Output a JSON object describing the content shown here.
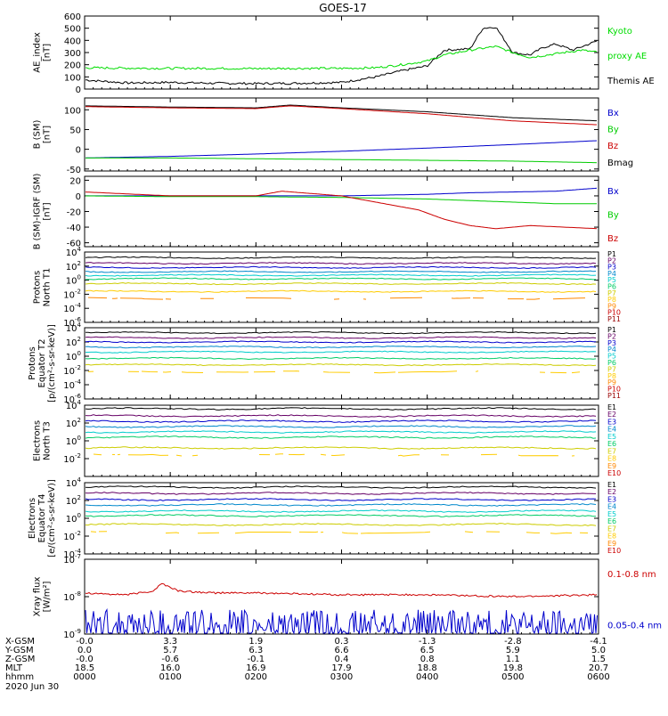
{
  "title": "GOES-17",
  "chart_data": [
    {
      "id": "ae",
      "type": "line",
      "ylabel": "AE_index\n[nT]",
      "ylim": [
        0,
        600
      ],
      "ylog": false,
      "yticks": [
        0,
        100,
        200,
        300,
        400,
        500,
        600
      ],
      "legend": [
        {
          "text": "Kyoto",
          "color": "#00dd00"
        },
        {
          "text": "proxy AE",
          "color": "#00dd00"
        },
        {
          "text": "Themis AE",
          "color": "#000000"
        }
      ],
      "series": [
        {
          "color": "#000000",
          "x": [
            0,
            0.5,
            1,
            1.5,
            2,
            2.5,
            3,
            3.4,
            3.7,
            4.0,
            4.2,
            4.5,
            4.65,
            4.8,
            5.0,
            5.2,
            5.35,
            5.5,
            5.7,
            5.85,
            6.0
          ],
          "y": [
            75,
            50,
            55,
            48,
            45,
            48,
            55,
            100,
            150,
            190,
            320,
            330,
            500,
            510,
            300,
            280,
            340,
            370,
            320,
            360,
            400
          ]
        },
        {
          "color": "#00dd00",
          "x": [
            0,
            0.5,
            1,
            1.5,
            2,
            2.5,
            3,
            3.4,
            3.7,
            4.0,
            4.2,
            4.5,
            4.8,
            5.0,
            5.2,
            5.5,
            5.8,
            6.0
          ],
          "y": [
            175,
            172,
            170,
            170,
            168,
            170,
            170,
            175,
            200,
            230,
            280,
            320,
            350,
            300,
            260,
            290,
            320,
            300
          ]
        }
      ]
    },
    {
      "id": "bsm",
      "type": "line",
      "ylabel": "B (SM)\n[nT]",
      "ylim": [
        -55,
        130
      ],
      "ylog": false,
      "yticks": [
        -50,
        0,
        50,
        100
      ],
      "legend": [
        {
          "text": "Bx",
          "color": "#0000cc"
        },
        {
          "text": "By",
          "color": "#00cc00"
        },
        {
          "text": "Bz",
          "color": "#cc0000"
        },
        {
          "text": "Bmag",
          "color": "#000000"
        }
      ],
      "series": [
        {
          "color": "#000000",
          "x": [
            0,
            1,
            2,
            2.4,
            3,
            4,
            5,
            6
          ],
          "y": [
            110,
            107,
            105,
            112,
            105,
            95,
            80,
            72
          ]
        },
        {
          "color": "#cc0000",
          "x": [
            0,
            1,
            2,
            2.4,
            3,
            4,
            5,
            6
          ],
          "y": [
            108,
            105,
            103,
            110,
            103,
            90,
            72,
            62
          ]
        },
        {
          "color": "#0000cc",
          "x": [
            0,
            1,
            2,
            3,
            4,
            5,
            6
          ],
          "y": [
            -22,
            -18,
            -12,
            -5,
            3,
            12,
            22
          ]
        },
        {
          "color": "#00cc00",
          "x": [
            0,
            1,
            2,
            3,
            4,
            5,
            6
          ],
          "y": [
            -22,
            -22,
            -24,
            -26,
            -28,
            -30,
            -34
          ]
        }
      ]
    },
    {
      "id": "bsm_igrf",
      "type": "line",
      "ylabel": "B (SM)-IGRF (SM)\n[nT]",
      "ylim": [
        -65,
        25
      ],
      "ylog": false,
      "yticks": [
        -60,
        -40,
        -20,
        0,
        20
      ],
      "legend": [
        {
          "text": "Bx",
          "color": "#0000cc"
        },
        {
          "text": "By",
          "color": "#00cc00"
        },
        {
          "text": "Bz",
          "color": "#cc0000"
        }
      ],
      "series": [
        {
          "color": "#0000cc",
          "x": [
            0,
            1,
            2,
            3,
            4,
            4.5,
            5,
            5.5,
            6
          ],
          "y": [
            0,
            0,
            0,
            0,
            2,
            4,
            5,
            6,
            10
          ]
        },
        {
          "color": "#00cc00",
          "x": [
            0,
            1,
            2,
            3,
            4,
            4.5,
            5,
            5.5,
            6
          ],
          "y": [
            0,
            -1,
            -1,
            -2,
            -4,
            -6,
            -8,
            -10,
            -10
          ]
        },
        {
          "color": "#cc0000",
          "x": [
            0,
            1,
            2,
            2.3,
            3,
            3.5,
            3.9,
            4.2,
            4.5,
            4.8,
            5.2,
            5.6,
            6
          ],
          "y": [
            5,
            0,
            0,
            6,
            0,
            -10,
            -18,
            -30,
            -38,
            -42,
            -38,
            -40,
            -42
          ]
        }
      ]
    },
    {
      "id": "protons_n",
      "type": "line",
      "ylabel": "Protons\nNorth T1",
      "ylim": [
        -6,
        4
      ],
      "ylog": true,
      "yticks": [
        -6,
        -4,
        -2,
        0,
        2,
        4
      ],
      "legend": [
        {
          "text": "P1",
          "color": "#000000"
        },
        {
          "text": "P2",
          "color": "#660066"
        },
        {
          "text": "P3",
          "color": "#0000cc"
        },
        {
          "text": "P4",
          "color": "#0088cc"
        },
        {
          "text": "P5",
          "color": "#00cccc"
        },
        {
          "text": "P6",
          "color": "#00cc66"
        },
        {
          "text": "P7",
          "color": "#cccc00"
        },
        {
          "text": "P8",
          "color": "#ffcc00"
        },
        {
          "text": "P9",
          "color": "#ff8800"
        },
        {
          "text": "P10",
          "color": "#cc0000"
        },
        {
          "text": "P11",
          "color": "#990000"
        }
      ],
      "levels": [
        3.2,
        2.4,
        1.8,
        1.2,
        0.7,
        0.2,
        -0.5,
        -1.6,
        -2.6
      ]
    },
    {
      "id": "protons_e",
      "type": "line",
      "ylabel": "Protons\nEquator T2\n[p/(cm²-s-sr-keV)]",
      "ylim": [
        -6,
        4
      ],
      "ylog": true,
      "yticks": [
        -6,
        -4,
        -2,
        0,
        2,
        4
      ],
      "legend": [
        {
          "text": "P1",
          "color": "#000000"
        },
        {
          "text": "P2",
          "color": "#660066"
        },
        {
          "text": "P3",
          "color": "#0000cc"
        },
        {
          "text": "P4",
          "color": "#0088cc"
        },
        {
          "text": "P5",
          "color": "#00cccc"
        },
        {
          "text": "P6",
          "color": "#00cc66"
        },
        {
          "text": "P7",
          "color": "#cccc00"
        },
        {
          "text": "P8",
          "color": "#ffcc00"
        },
        {
          "text": "P9",
          "color": "#ff8800"
        },
        {
          "text": "P10",
          "color": "#cc0000"
        },
        {
          "text": "P11",
          "color": "#990000"
        }
      ],
      "levels": [
        3.3,
        2.6,
        2.0,
        1.3,
        0.6,
        -0.3,
        -1.2,
        -2.2
      ]
    },
    {
      "id": "electrons_n",
      "type": "line",
      "ylabel": "Electrons\nNorth T3",
      "ylim": [
        -4,
        4
      ],
      "ylog": true,
      "yticks": [
        -2,
        0,
        2,
        4
      ],
      "legend": [
        {
          "text": "E1",
          "color": "#000000"
        },
        {
          "text": "E2",
          "color": "#660066"
        },
        {
          "text": "E3",
          "color": "#0000cc"
        },
        {
          "text": "E4",
          "color": "#0088cc"
        },
        {
          "text": "E5",
          "color": "#00cccc"
        },
        {
          "text": "E6",
          "color": "#00cc66"
        },
        {
          "text": "E7",
          "color": "#cccc00"
        },
        {
          "text": "E8",
          "color": "#ffcc00"
        },
        {
          "text": "E9",
          "color": "#ff8800"
        },
        {
          "text": "E10",
          "color": "#cc0000"
        }
      ],
      "levels": [
        3.6,
        2.8,
        2.2,
        1.6,
        1.0,
        0.4,
        -0.8,
        -1.6
      ]
    },
    {
      "id": "electrons_e",
      "type": "line",
      "ylabel": "Electrons\nEquator T4\n[e/(cm²-s-sr-keV)]",
      "ylim": [
        -4,
        4
      ],
      "ylog": true,
      "yticks": [
        -4,
        -2,
        0,
        2,
        4
      ],
      "legend": [
        {
          "text": "E1",
          "color": "#000000"
        },
        {
          "text": "E2",
          "color": "#660066"
        },
        {
          "text": "E3",
          "color": "#0000cc"
        },
        {
          "text": "E4",
          "color": "#0088cc"
        },
        {
          "text": "E5",
          "color": "#00cccc"
        },
        {
          "text": "E6",
          "color": "#00cc66"
        },
        {
          "text": "E7",
          "color": "#cccc00"
        },
        {
          "text": "E8",
          "color": "#ffcc00"
        },
        {
          "text": "E9",
          "color": "#ff8800"
        },
        {
          "text": "E10",
          "color": "#cc0000"
        }
      ],
      "levels": [
        3.5,
        2.8,
        2.1,
        1.5,
        0.8,
        0.3,
        -0.7,
        -1.6
      ]
    },
    {
      "id": "xray",
      "type": "line",
      "ylabel": "Xray flux\n[W/m²]",
      "ylim": [
        -9,
        -7
      ],
      "ylog": true,
      "yticks": [
        -9,
        -8,
        -7
      ],
      "legend": [
        {
          "text": "0.1-0.8 nm",
          "color": "#cc0000"
        },
        {
          "text": "0.05-0.4 nm",
          "color": "#0000cc"
        }
      ],
      "series": [
        {
          "color": "#cc0000",
          "x": [
            0,
            0.5,
            0.8,
            0.9,
            1.1,
            1.5,
            2,
            3,
            4,
            5,
            6
          ],
          "y": [
            -7.9,
            -7.95,
            -7.85,
            -7.65,
            -7.85,
            -7.9,
            -7.9,
            -7.95,
            -7.95,
            -8.0,
            -7.95
          ]
        },
        {
          "color": "#0000cc",
          "x": [
            0,
            6
          ],
          "y": [
            -8.8,
            -8.8
          ]
        }
      ]
    }
  ],
  "x_axis": {
    "ticks": [
      0,
      1,
      2,
      3,
      4,
      5,
      6
    ],
    "rows": [
      {
        "label": "X-GSM",
        "values": [
          "-0.0",
          "3.3",
          "1.9",
          "0.3",
          "-1.3",
          "-2.8",
          "-4.1"
        ]
      },
      {
        "label": "Y-GSM",
        "values": [
          "0.0",
          "5.7",
          "6.3",
          "6.6",
          "6.5",
          "5.9",
          "5.0"
        ]
      },
      {
        "label": "Z-GSM",
        "values": [
          "-0.0",
          "-0.6",
          "-0.1",
          "0.4",
          "0.8",
          "1.1",
          "1.5"
        ]
      },
      {
        "label": "MLT",
        "values": [
          "18.5",
          "16.0",
          "16.9",
          "17.9",
          "18.8",
          "19.8",
          "20.7"
        ]
      },
      {
        "label": "hhmm",
        "values": [
          "0000",
          "0100",
          "0200",
          "0300",
          "0400",
          "0500",
          "0600"
        ]
      }
    ],
    "date": "2020 Jun 30"
  }
}
